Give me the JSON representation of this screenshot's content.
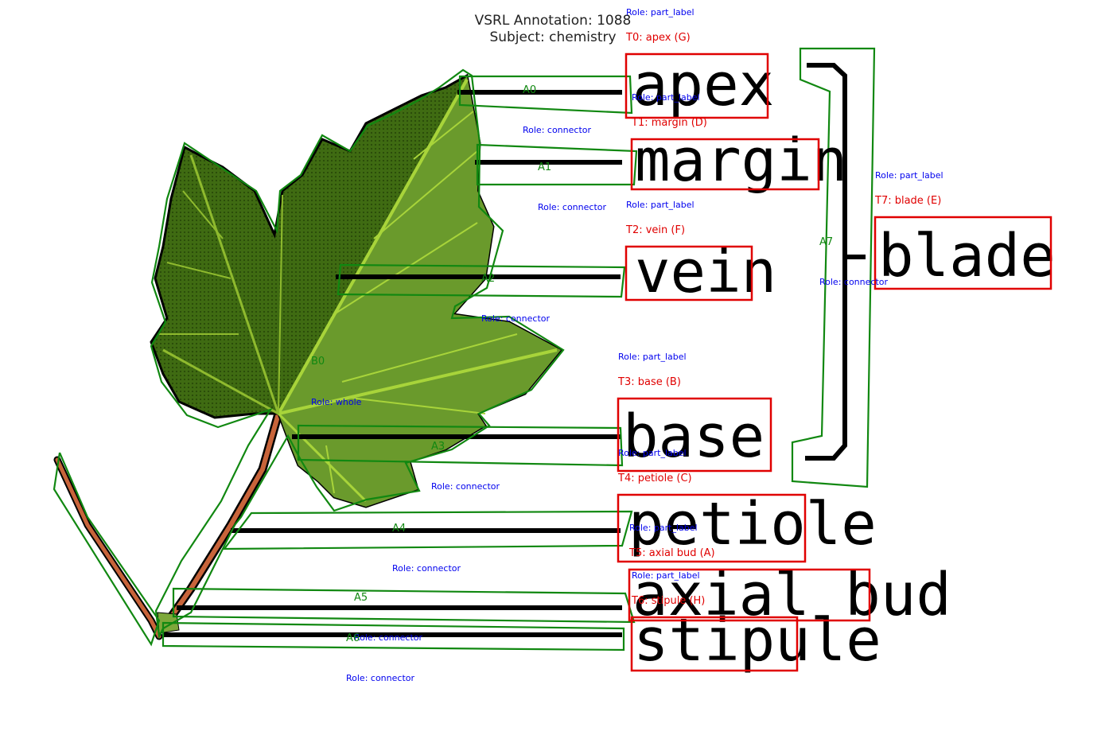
{
  "header": {
    "annotation": "VSRL Annotation: 1088",
    "subject": "Subject: chemistry"
  },
  "labels": {
    "apex": "apex",
    "margin": "margin",
    "vein": "vein",
    "base": "base",
    "petiole": "petiole",
    "axial_bud": "axial bud",
    "stipule": "stipule",
    "blade": "blade"
  },
  "tags": {
    "T0": "T0: apex (G)",
    "T1": "T1: margin (D)",
    "T2": "T2: vein (F)",
    "T3": "T3: base (B)",
    "T4": "T4: petiole (C)",
    "T5": "T5: axial bud (A)",
    "T6": "T6: stipule (H)",
    "T7": "T7: blade (E)"
  },
  "roles": {
    "part_label": "Role: part_label",
    "connector": "Role: connector",
    "whole": "Role: whole"
  },
  "ids": {
    "A0": "A0",
    "A1": "A1",
    "A2": "A2",
    "A3": "A3",
    "A4": "A4",
    "A5": "A5",
    "A6": "A6",
    "A7": "A7",
    "B0": "B0"
  },
  "colors": {
    "leaf_dark": "#3f6b12",
    "leaf_light": "#6a9a2c",
    "vein": "#a8d43a",
    "stem": "#c8643a",
    "annotation_green": "#118811",
    "tag_red": "#e00000",
    "role_blue": "#0000ee"
  }
}
